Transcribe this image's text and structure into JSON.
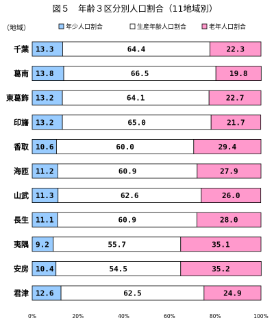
{
  "chart_data": {
    "type": "bar",
    "stacked": true,
    "orientation": "horizontal",
    "title": "図５　年齢３区分別人口割合（11地域別）",
    "category_header": "（地域）",
    "categories": [
      "千葉",
      "葛南",
      "東葛飾",
      "印旛",
      "香取",
      "海匝",
      "山武",
      "長生",
      "夷隅",
      "安房",
      "君津"
    ],
    "series": [
      {
        "name": "年少人口割合",
        "color": "#99ccff",
        "values": [
          13.3,
          13.8,
          13.2,
          13.2,
          10.6,
          11.2,
          11.3,
          11.1,
          9.2,
          10.4,
          12.6
        ]
      },
      {
        "name": "生産年齢人口割合",
        "color": "#ffffff",
        "values": [
          64.4,
          66.5,
          64.1,
          65.0,
          60.0,
          60.9,
          62.6,
          60.9,
          55.7,
          54.5,
          62.5
        ]
      },
      {
        "name": "老年人口割合",
        "color": "#ff99cc",
        "values": [
          22.3,
          19.8,
          22.7,
          21.7,
          29.4,
          27.9,
          26.0,
          28.0,
          35.1,
          35.2,
          24.9
        ]
      }
    ],
    "xlim": [
      0,
      100
    ],
    "x_ticks": [
      "0%",
      "20%",
      "40%",
      "60%",
      "80%",
      "100%"
    ],
    "legend_position": "top",
    "grid": false
  }
}
